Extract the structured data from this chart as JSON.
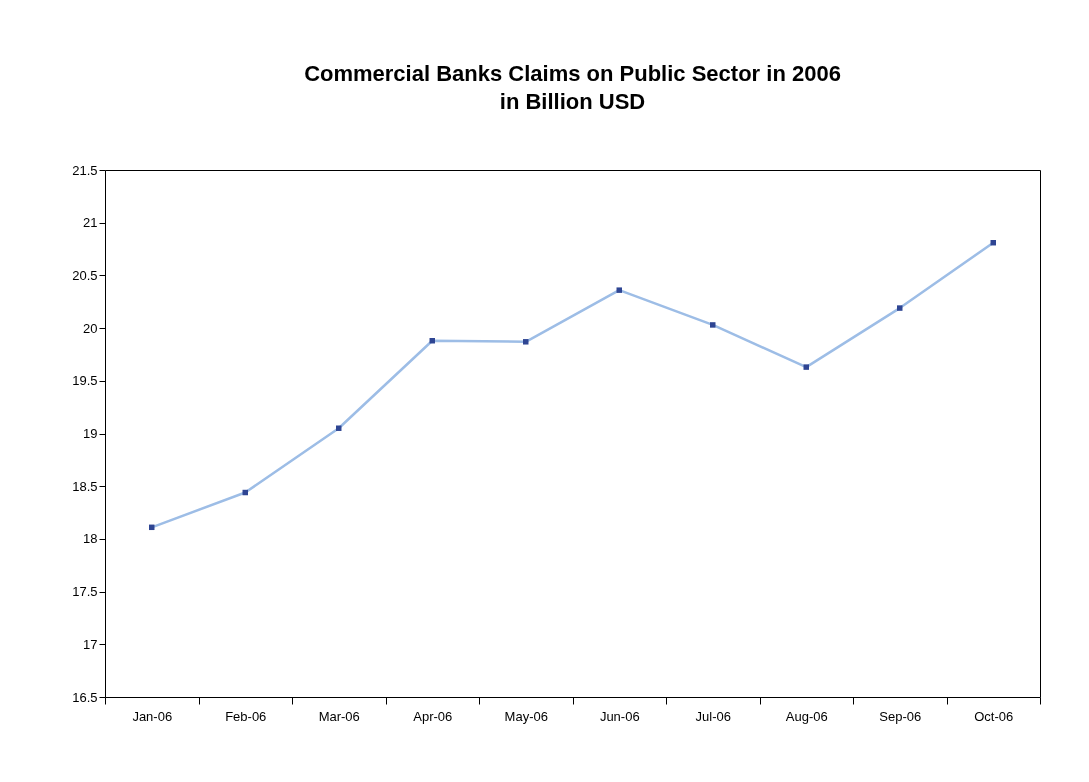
{
  "chart_data": {
    "type": "line",
    "title": "Commercial Banks Claims on Public Sector in 2006",
    "subtitle": "in Billion USD",
    "categories": [
      "Jan-06",
      "Feb-06",
      "Mar-06",
      "Apr-06",
      "May-06",
      "Jun-06",
      "Jul-06",
      "Aug-06",
      "Sep-06",
      "Oct-06"
    ],
    "series": [
      {
        "color": "#9dbde6",
        "values": [
          18.11,
          18.44,
          19.05,
          19.88,
          19.87,
          20.36,
          20.03,
          19.63,
          20.19,
          20.81
        ]
      }
    ],
    "ylim": [
      16.5,
      21.5
    ],
    "yticks": [
      16.5,
      17,
      17.5,
      18,
      18.5,
      19,
      19.5,
      20,
      20.5,
      21,
      21.5
    ],
    "grid": false,
    "marker": "square",
    "line_style": "solid"
  }
}
